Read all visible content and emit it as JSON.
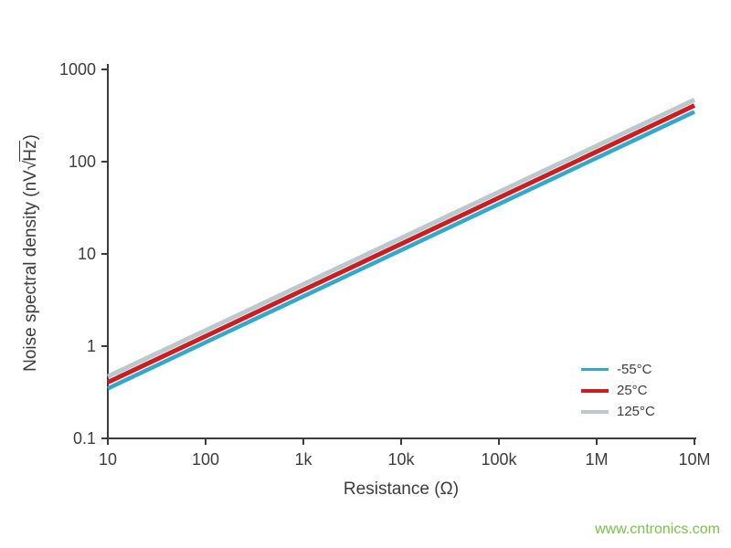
{
  "watermark": {
    "text": "www.cntronics.com",
    "color": "#78c14f"
  },
  "chart_data": {
    "type": "line",
    "title": "",
    "xlabel": "Resistance (Ω)",
    "ylabel": "Noise spectral density (nV√Hz)",
    "ylabel_parts": {
      "prefix": "Noise spectral density (nV",
      "radical": "√",
      "radicand": "Hz",
      "suffix": ")"
    },
    "x_scale": "log",
    "y_scale": "log",
    "xlim": [
      10,
      10000000
    ],
    "ylim": [
      0.1,
      1000
    ],
    "grid": false,
    "legend_position": "lower right",
    "x_ticks": [
      {
        "value": 10,
        "label": "10"
      },
      {
        "value": 100,
        "label": "100"
      },
      {
        "value": 1000,
        "label": "1k"
      },
      {
        "value": 10000,
        "label": "10k"
      },
      {
        "value": 100000,
        "label": "100k"
      },
      {
        "value": 1000000,
        "label": "1M"
      },
      {
        "value": 10000000,
        "label": "10M"
      }
    ],
    "y_ticks": [
      {
        "value": 0.1,
        "label": "0.1"
      },
      {
        "value": 1,
        "label": "1"
      },
      {
        "value": 10,
        "label": "10"
      },
      {
        "value": 100,
        "label": "100"
      },
      {
        "value": 1000,
        "label": "1000"
      }
    ],
    "x": [
      10,
      100,
      1000,
      10000,
      100000,
      1000000,
      10000000
    ],
    "series": [
      {
        "name": "-55°C",
        "color": "#35a7c9",
        "stroke_px": 4.5,
        "values": [
          0.347,
          1.1,
          3.47,
          10.97,
          34.7,
          109.7,
          347
        ]
      },
      {
        "name": "25°C",
        "color": "#c81f25",
        "stroke_px": 5,
        "values": [
          0.406,
          1.28,
          4.06,
          12.83,
          40.6,
          128.3,
          406
        ]
      },
      {
        "name": "125°C",
        "color": "#bdc8cc",
        "stroke_px": 5,
        "values": [
          0.469,
          1.48,
          4.69,
          14.82,
          46.9,
          148.2,
          469
        ]
      }
    ]
  }
}
